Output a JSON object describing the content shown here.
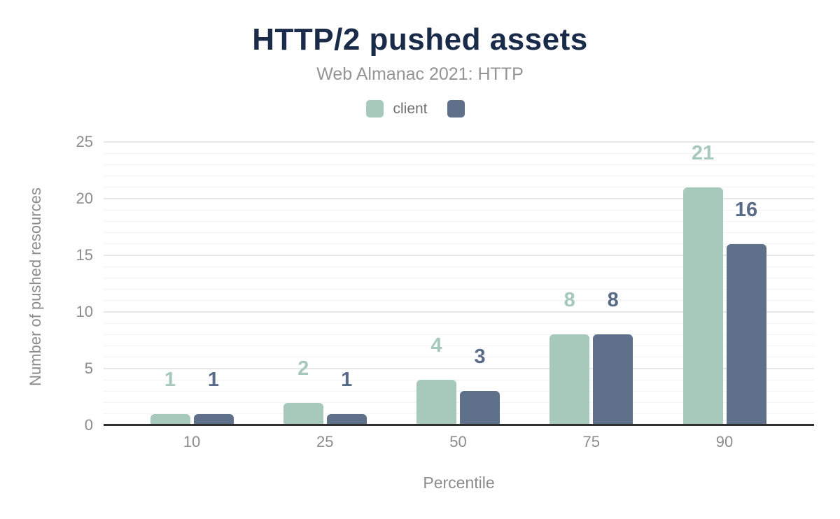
{
  "chart_data": {
    "type": "bar",
    "title": "HTTP/2 pushed assets",
    "subtitle": "Web Almanac 2021: HTTP",
    "categories": [
      "10",
      "25",
      "50",
      "75",
      "90"
    ],
    "series": [
      {
        "name": "client",
        "color": "#a7c9bb",
        "label_color": "#a7c9bb",
        "values": [
          1,
          2,
          4,
          8,
          21
        ]
      },
      {
        "name": "",
        "color": "#5f708b",
        "label_color": "#5a6b88",
        "values": [
          1,
          1,
          3,
          8,
          16
        ]
      }
    ],
    "xlabel": "Percentile",
    "ylabel": "Number of pushed resources",
    "ylim": [
      0,
      25
    ],
    "yticks": [
      0,
      5,
      10,
      15,
      20,
      25
    ],
    "minor_grid_step": 1,
    "grid": true,
    "data_labels": true,
    "legend_position": "top",
    "palette": {
      "title_color": "#1a2b4a",
      "subtitle_color": "#949494",
      "axis_text_color": "#8c8c8c",
      "legend_text_color": "#707070",
      "axis_line_color": "#2f2f2f",
      "major_grid_color": "#e7e7e7",
      "minor_grid_color": "#f3f3f3",
      "background": "#ffffff"
    }
  }
}
